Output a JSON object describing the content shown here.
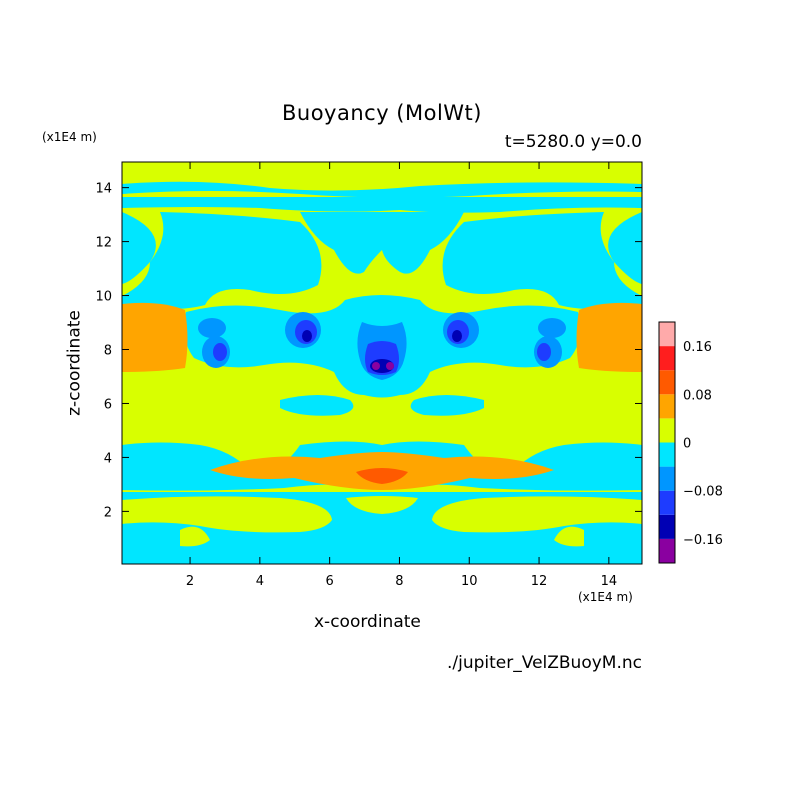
{
  "chart_data": {
    "type": "heatmap",
    "title": "Buoyancy (MolWt)",
    "subtitle": "t=5280.0 y=0.0",
    "xlabel": "x-coordinate",
    "ylabel": "z-coordinate",
    "x_unit": "(x1E4 m)",
    "y_unit": "(x1E4 m)",
    "source_file": "./jupiter_VelZBuoyM.nc",
    "xlim": [
      0.05,
      14.95
    ],
    "ylim": [
      0.05,
      14.95
    ],
    "x_ticks": [
      2,
      4,
      6,
      8,
      10,
      12,
      14
    ],
    "y_ticks": [
      2,
      4,
      6,
      8,
      10,
      12,
      14
    ],
    "colorbar": {
      "levels": [
        -0.2,
        -0.16,
        -0.12,
        -0.08,
        -0.04,
        0,
        0.04,
        0.08,
        0.12,
        0.16,
        0.2
      ],
      "colors": [
        "#8a00a0",
        "#0000b4",
        "#1e3cff",
        "#0096ff",
        "#00e6ff",
        "#d8ff00",
        "#ffa500",
        "#ff5a00",
        "#ff1e1e",
        "#ffaaaa"
      ],
      "tick_labels": [
        "0.16",
        "0.08",
        "0",
        "−0.08",
        "−0.16"
      ],
      "tick_values": [
        0.16,
        0.08,
        0,
        -0.08,
        -0.16
      ]
    },
    "regions": [
      {
        "level": "0 to 0.04",
        "description": "dominant yellow-green background"
      },
      {
        "level": "-0.04 to 0",
        "description": "cyan bands and lobes"
      },
      {
        "level": "0.04 to 0.08",
        "description": "orange bands near z=8.5 at both edges and near z=3.5 centre"
      },
      {
        "level": "-0.12 to -0.04",
        "description": "blue eddies near z=8.5"
      },
      {
        "level": "-0.2 to -0.12",
        "description": "purple cores at x=7.5, z=7.3"
      }
    ]
  }
}
